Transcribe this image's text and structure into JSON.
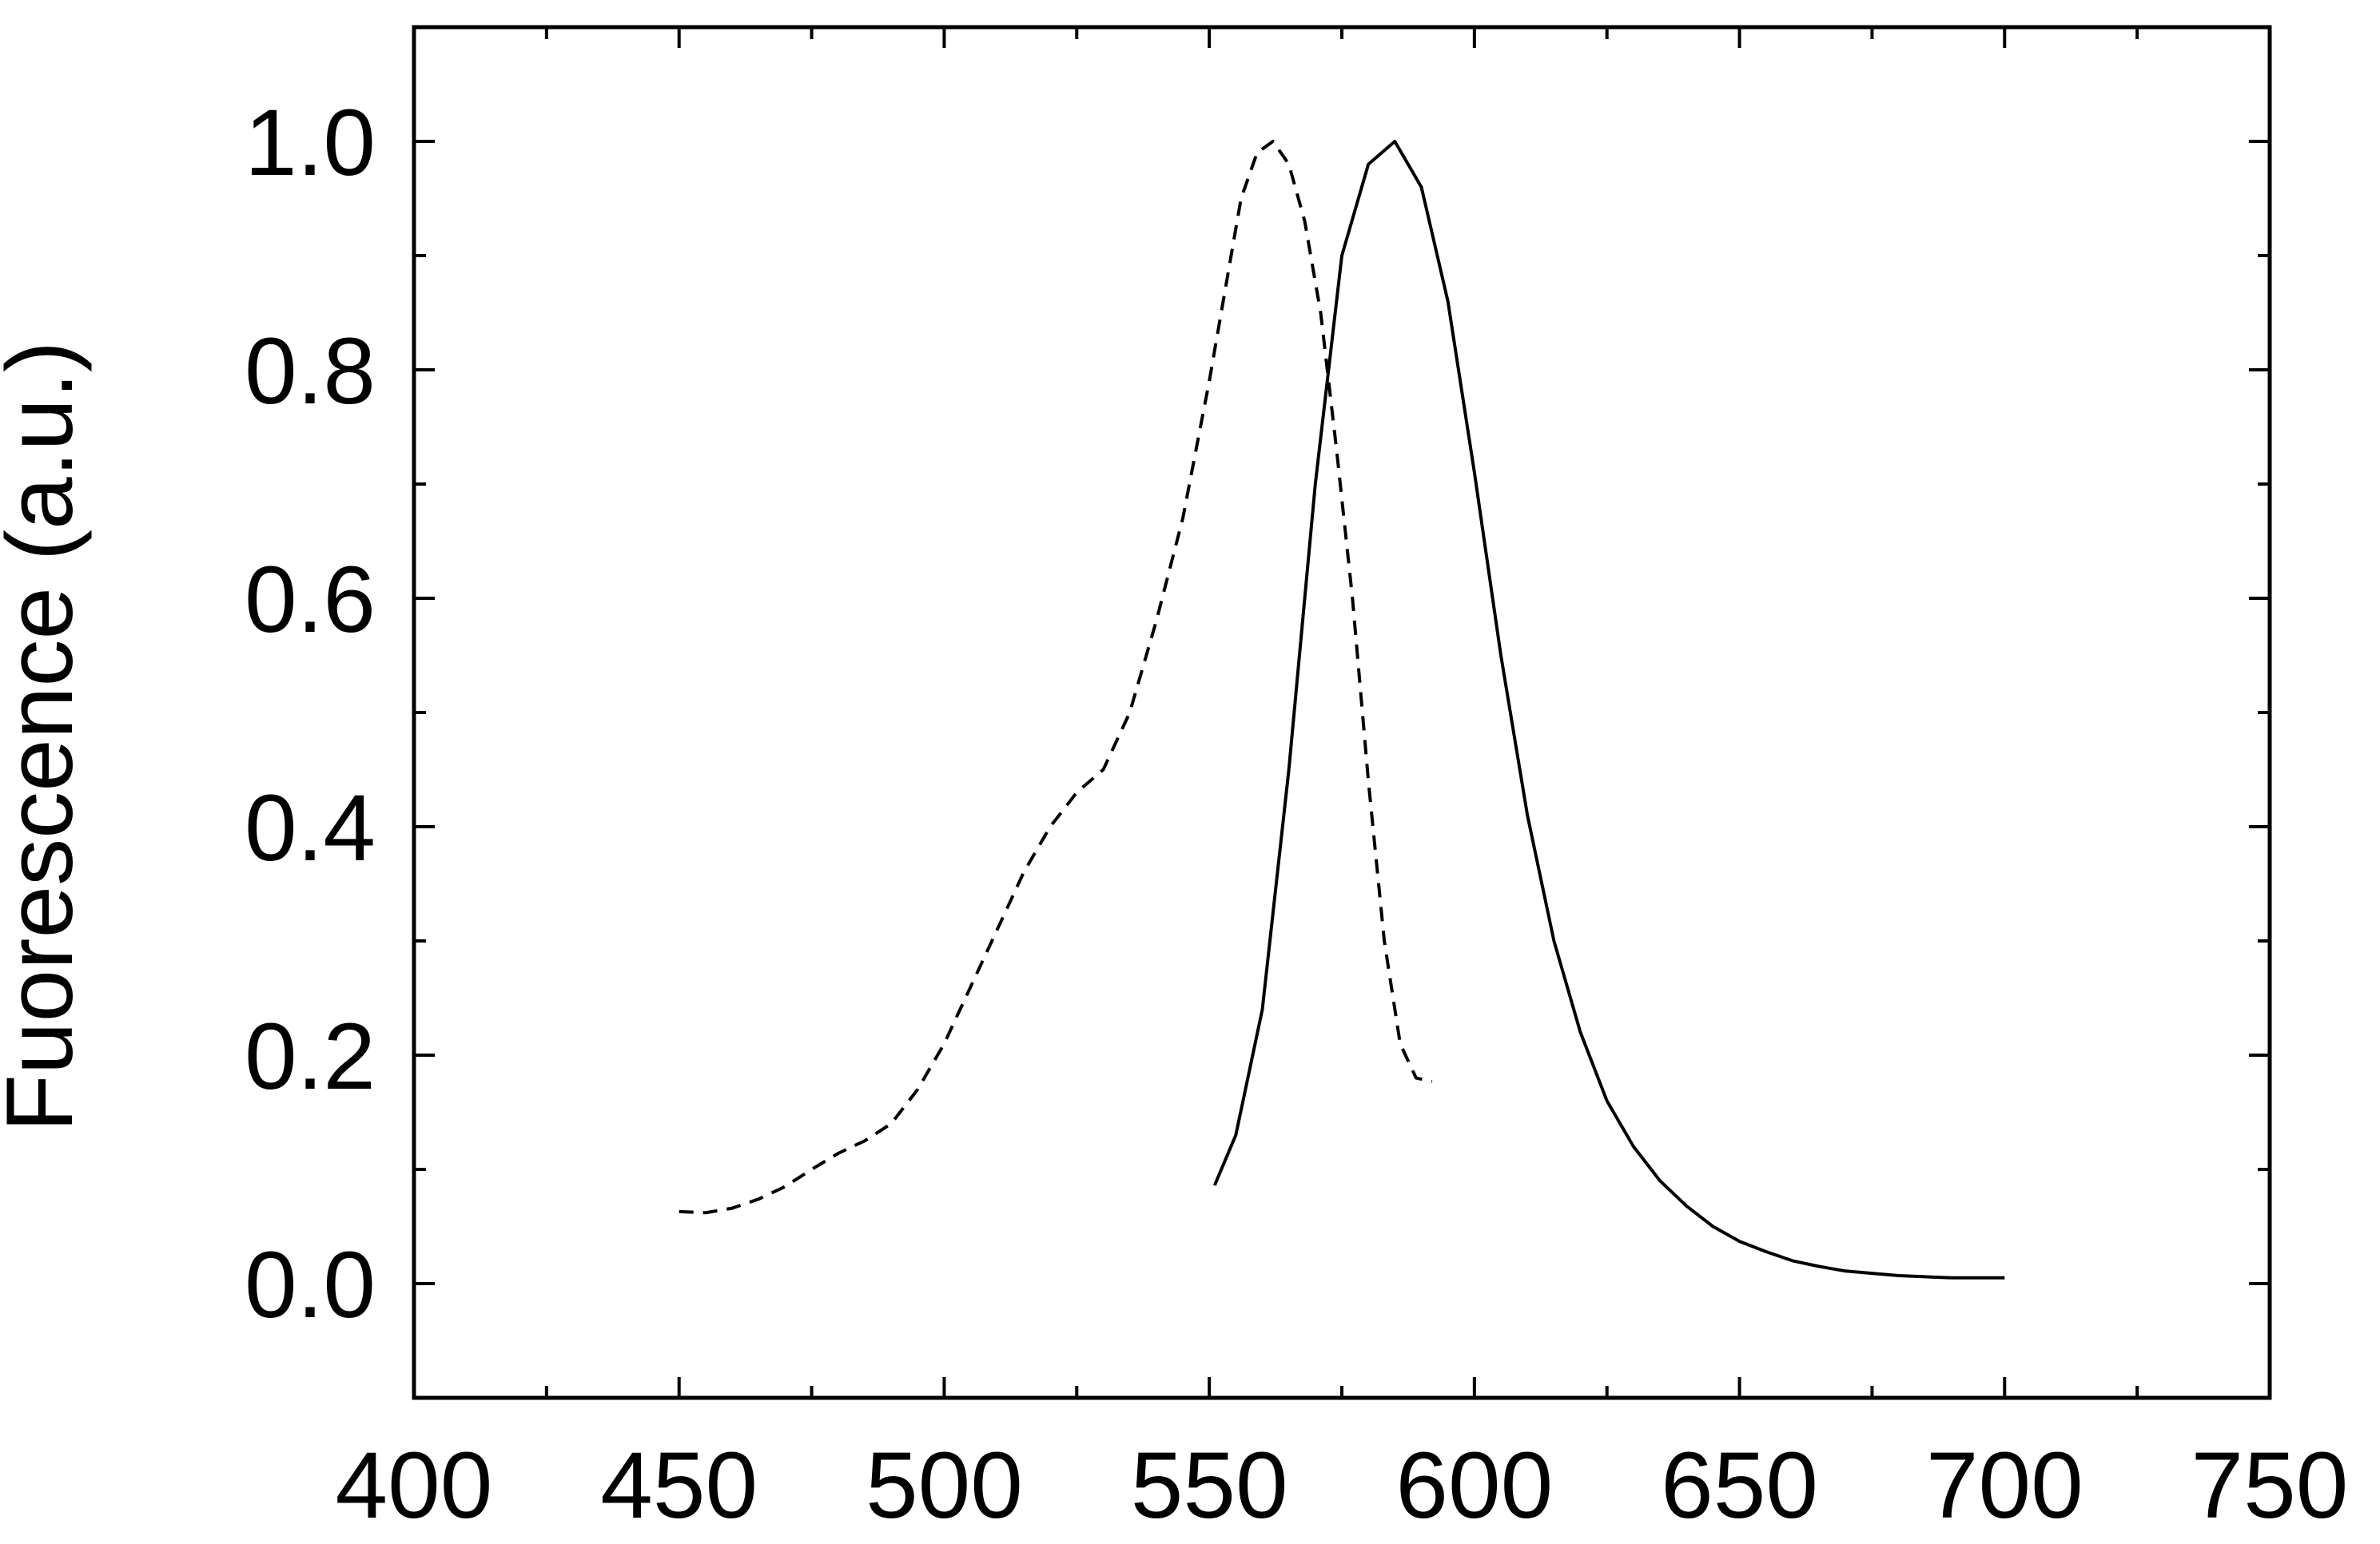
{
  "chart_data": {
    "type": "line",
    "title": "",
    "xlabel": "",
    "ylabel": "Fuorescence (a.u.)",
    "xlim": [
      400,
      750
    ],
    "ylim": [
      -0.1,
      1.1
    ],
    "x_ticks": [
      400,
      450,
      500,
      550,
      600,
      650,
      700,
      750
    ],
    "x_tick_labels": [
      "400",
      "450",
      "500",
      "550",
      "600",
      "650",
      "700",
      "750"
    ],
    "y_ticks": [
      0.0,
      0.2,
      0.4,
      0.6,
      0.8,
      1.0
    ],
    "y_tick_labels": [
      "0.0",
      "0.2",
      "0.4",
      "0.6",
      "0.8",
      "1.0"
    ],
    "grid": false,
    "legend": "none",
    "series": [
      {
        "style": "dashed",
        "color": "#000000",
        "x": [
          450,
          455,
          460,
          465,
          470,
          475,
          480,
          485,
          490,
          495,
          500,
          505,
          510,
          515,
          520,
          525,
          530,
          535,
          540,
          545,
          550,
          553,
          556,
          559,
          562,
          565,
          568,
          571,
          574,
          577,
          580,
          583,
          586,
          589,
          592
        ],
        "y": [
          0.063,
          0.062,
          0.066,
          0.074,
          0.085,
          0.1,
          0.114,
          0.125,
          0.14,
          0.17,
          0.21,
          0.26,
          0.31,
          0.36,
          0.4,
          0.43,
          0.45,
          0.5,
          0.58,
          0.67,
          0.79,
          0.87,
          0.95,
          0.99,
          1.0,
          0.98,
          0.93,
          0.85,
          0.73,
          0.6,
          0.44,
          0.3,
          0.21,
          0.18,
          0.177
        ]
      },
      {
        "style": "solid",
        "color": "#000000",
        "x": [
          551,
          555,
          560,
          565,
          570,
          575,
          580,
          585,
          590,
          595,
          600,
          605,
          610,
          615,
          620,
          625,
          630,
          635,
          640,
          645,
          650,
          655,
          660,
          665,
          670,
          675,
          680,
          685,
          690,
          695,
          700
        ],
        "y": [
          0.086,
          0.13,
          0.24,
          0.45,
          0.7,
          0.9,
          0.98,
          1.0,
          0.96,
          0.86,
          0.71,
          0.55,
          0.41,
          0.3,
          0.22,
          0.16,
          0.12,
          0.09,
          0.068,
          0.05,
          0.037,
          0.028,
          0.02,
          0.015,
          0.011,
          0.009,
          0.007,
          0.006,
          0.005,
          0.005,
          0.005
        ]
      }
    ]
  }
}
